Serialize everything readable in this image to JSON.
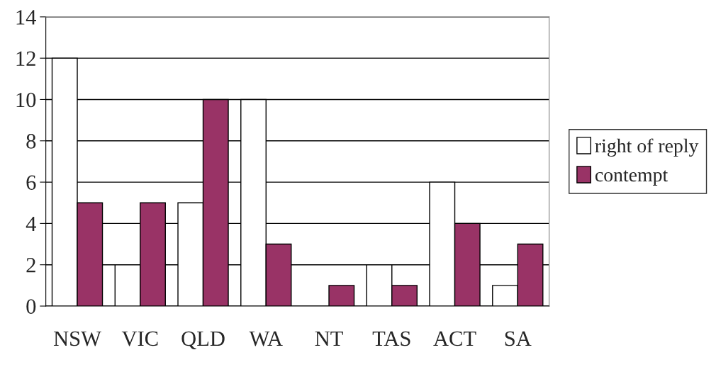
{
  "chart_data": {
    "type": "bar",
    "categories": [
      "NSW",
      "VIC",
      "QLD",
      "WA",
      "NT",
      "TAS",
      "ACT",
      "SA"
    ],
    "series": [
      {
        "name": "right of reply",
        "color": "#ffffff",
        "values": [
          12,
          2,
          5,
          10,
          0,
          2,
          6,
          1
        ]
      },
      {
        "name": "contempt",
        "color": "#993366",
        "values": [
          5,
          5,
          10,
          3,
          1,
          1,
          4,
          3
        ]
      }
    ],
    "ylim": [
      0,
      14
    ],
    "yticks": [
      0,
      2,
      4,
      6,
      8,
      10,
      12,
      14
    ],
    "grid": "y",
    "legend": "right"
  }
}
